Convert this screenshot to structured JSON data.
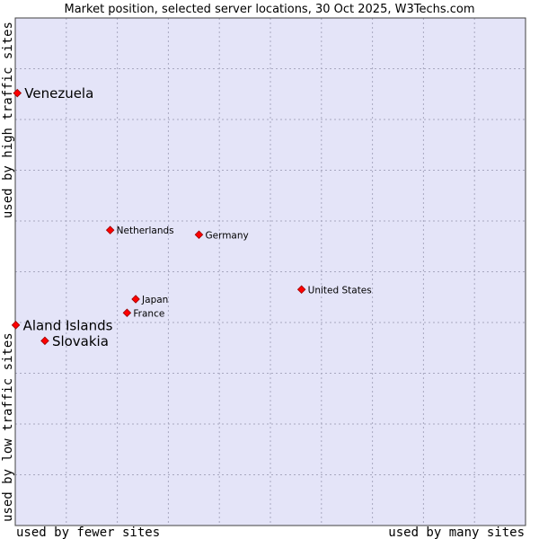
{
  "chart_data": {
    "type": "scatter",
    "title": "Market position, selected server locations, 30 Oct 2025, W3Techs.com",
    "xlabel_left": "used by fewer sites",
    "xlabel_right": "used by many sites",
    "ylabel_bottom": "used by low traffic sites",
    "ylabel_top": "used by high traffic sites",
    "xlim": [
      0,
      100
    ],
    "ylim": [
      0,
      100
    ],
    "grid": true,
    "colors": {
      "background": "#e4e4f8",
      "grid": "#a8a8c0",
      "marker": "#ff0000",
      "marker_edge": "#990000"
    },
    "points": [
      {
        "label": "Venezuela",
        "x": 0.4,
        "y": 85.2,
        "emphasis": true
      },
      {
        "label": "Netherlands",
        "x": 18.6,
        "y": 58.2,
        "emphasis": false
      },
      {
        "label": "Germany",
        "x": 36.0,
        "y": 57.3,
        "emphasis": false
      },
      {
        "label": "United States",
        "x": 56.1,
        "y": 46.5,
        "emphasis": false
      },
      {
        "label": "Japan",
        "x": 23.6,
        "y": 44.6,
        "emphasis": false
      },
      {
        "label": "France",
        "x": 21.9,
        "y": 41.9,
        "emphasis": false
      },
      {
        "label": "Aland Islands",
        "x": 0.1,
        "y": 39.5,
        "emphasis": true
      },
      {
        "label": "Slovakia",
        "x": 5.8,
        "y": 36.4,
        "emphasis": true
      }
    ]
  }
}
